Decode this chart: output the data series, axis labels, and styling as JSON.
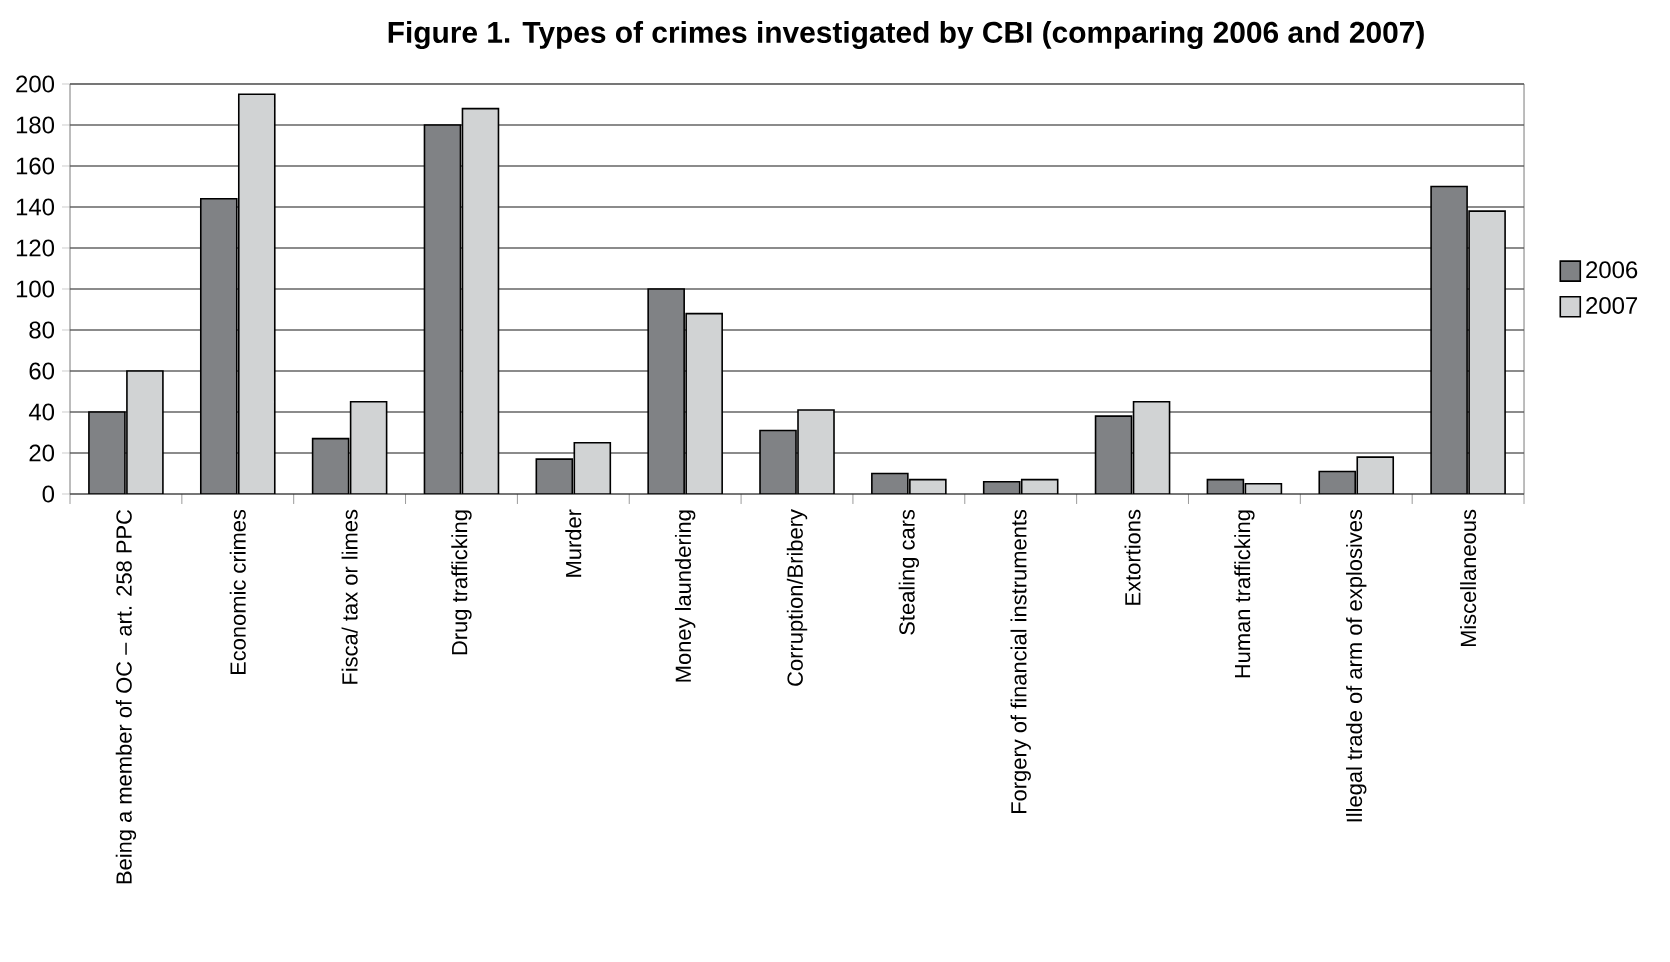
{
  "chart_data": {
    "type": "bar",
    "title": "Figure 1. Types of crimes investigated by CBI (comparing 2006 and 2007)",
    "categories": [
      "Being a member of OC – art. 258 PPC",
      "Economic crimes",
      "Fisca/ tax or limes",
      "Drug trafficking",
      "Murder",
      "Money laundering",
      "Corruption/Bribery",
      "Stealing cars",
      "Forgery of financial instruments",
      "Extortions",
      "Human trafficking",
      "Illegal trade of arm of explosives",
      "Miscellaneous"
    ],
    "series": [
      {
        "name": "2006",
        "color": "#808285",
        "values": [
          40,
          144,
          27,
          180,
          17,
          100,
          31,
          10,
          6,
          38,
          7,
          11,
          150
        ]
      },
      {
        "name": "2007",
        "color": "#d1d3d4",
        "values": [
          60,
          195,
          45,
          188,
          25,
          88,
          41,
          7,
          7,
          45,
          5,
          18,
          138
        ]
      }
    ],
    "ylim": [
      0,
      200
    ],
    "yticks": [
      0,
      20,
      40,
      60,
      80,
      100,
      120,
      140,
      160,
      180,
      200
    ],
    "grid": "y",
    "legend": "right"
  }
}
